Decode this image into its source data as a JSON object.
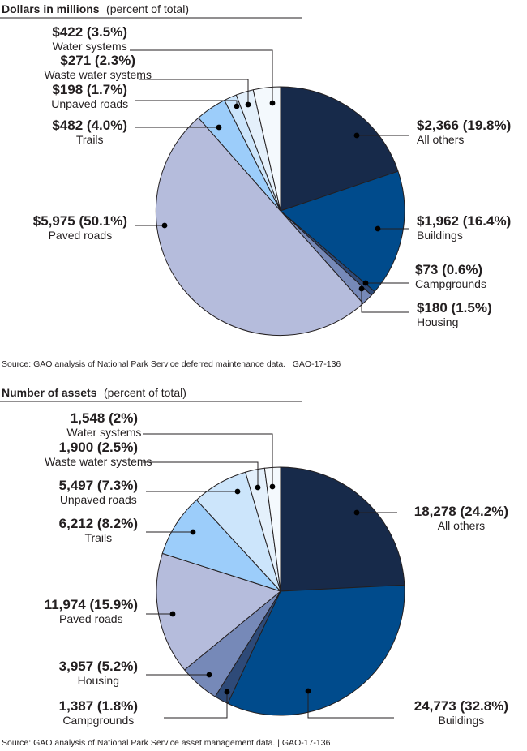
{
  "colors": {
    "All others": "#172a4a",
    "Buildings": "#004b8c",
    "Campgrounds": "#2e4a78",
    "Housing": "#7689b8",
    "Paved roads": "#b5bcdc",
    "Trails": "#9ccdfa",
    "Unpaved roads": "#cce5fb",
    "Waste water systems": "#e4f0fb",
    "Water systems": "#f4f9fd",
    "outline": "#231f20"
  },
  "chart_data": [
    {
      "type": "pie",
      "title": "Dollars in millions",
      "title_note": "(percent of total)",
      "source": "Source: GAO analysis of National Park Service deferred maintenance data.  |  GAO-17-136",
      "start": "12 o'clock, clockwise",
      "slices": [
        {
          "category": "All others",
          "value": 2366,
          "percent": 19.8,
          "value_label": "$2,366 (19.8%)"
        },
        {
          "category": "Buildings",
          "value": 1962,
          "percent": 16.4,
          "value_label": "$1,962 (16.4%)"
        },
        {
          "category": "Campgrounds",
          "value": 73,
          "percent": 0.6,
          "value_label": "$73 (0.6%)"
        },
        {
          "category": "Housing",
          "value": 180,
          "percent": 1.5,
          "value_label": "$180 (1.5%)"
        },
        {
          "category": "Paved roads",
          "value": 5975,
          "percent": 50.1,
          "value_label": "$5,975 (50.1%)"
        },
        {
          "category": "Trails",
          "value": 482,
          "percent": 4.0,
          "value_label": "$482 (4.0%)"
        },
        {
          "category": "Unpaved roads",
          "value": 198,
          "percent": 1.7,
          "value_label": "$198 (1.7%)"
        },
        {
          "category": "Waste water systems",
          "value": 271,
          "percent": 2.3,
          "value_label": "$271 (2.3%)"
        },
        {
          "category": "Water systems",
          "value": 422,
          "percent": 3.5,
          "value_label": "$422 (3.5%)"
        }
      ]
    },
    {
      "type": "pie",
      "title": "Number of assets",
      "title_note": "(percent of total)",
      "source": "Source: GAO analysis of National Park Service asset management data.  |  GAO-17-136",
      "start": "12 o'clock, clockwise",
      "slices": [
        {
          "category": "All others",
          "value": 18278,
          "percent": 24.2,
          "value_label": "18,278 (24.2%)"
        },
        {
          "category": "Buildings",
          "value": 24773,
          "percent": 32.8,
          "value_label": "24,773 (32.8%)"
        },
        {
          "category": "Campgrounds",
          "value": 1387,
          "percent": 1.8,
          "value_label": "1,387 (1.8%)"
        },
        {
          "category": "Housing",
          "value": 3957,
          "percent": 5.2,
          "value_label": "3,957 (5.2%)"
        },
        {
          "category": "Paved roads",
          "value": 11974,
          "percent": 15.9,
          "value_label": "11,974 (15.9%)"
        },
        {
          "category": "Trails",
          "value": 6212,
          "percent": 8.2,
          "value_label": "6,212 (8.2%)"
        },
        {
          "category": "Unpaved roads",
          "value": 5497,
          "percent": 7.3,
          "value_label": "5,497 (7.3%)"
        },
        {
          "category": "Waste water systems",
          "value": 1900,
          "percent": 2.5,
          "value_label": "1,900 (2.5%)"
        },
        {
          "category": "Water systems",
          "value": 1548,
          "percent": 2.0,
          "value_label": "1,548 (2%)"
        }
      ]
    }
  ]
}
